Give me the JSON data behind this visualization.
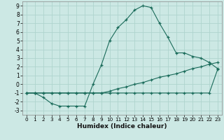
{
  "title": "",
  "xlabel": "Humidex (Indice chaleur)",
  "xlim": [
    -0.5,
    23.5
  ],
  "ylim": [
    -3.5,
    9.5
  ],
  "xticks": [
    0,
    1,
    2,
    3,
    4,
    5,
    6,
    7,
    8,
    9,
    10,
    11,
    12,
    13,
    14,
    15,
    16,
    17,
    18,
    19,
    20,
    21,
    22,
    23
  ],
  "yticks": [
    -3,
    -2,
    -1,
    0,
    1,
    2,
    3,
    4,
    5,
    6,
    7,
    8,
    9
  ],
  "line_color": "#1a6b5a",
  "bg_color": "#cce8e4",
  "grid_color": "#afd4ce",
  "line1_x": [
    0,
    1,
    2,
    3,
    4,
    5,
    6,
    7,
    8,
    9,
    10,
    11,
    12,
    13,
    14,
    15,
    16,
    17,
    18,
    19,
    20,
    21,
    22,
    23
  ],
  "line1_y": [
    -1,
    -1,
    -1.5,
    -2.2,
    -2.5,
    -2.5,
    -2.5,
    -2.5,
    0.0,
    2.2,
    5.0,
    6.5,
    7.4,
    8.5,
    9.0,
    8.8,
    7.0,
    5.4,
    3.6,
    3.6,
    3.2,
    3.0,
    2.5,
    1.8
  ],
  "line2_x": [
    0,
    1,
    2,
    3,
    4,
    5,
    6,
    7,
    8,
    9,
    10,
    11,
    12,
    13,
    14,
    15,
    16,
    17,
    18,
    19,
    20,
    21,
    22,
    23
  ],
  "line2_y": [
    -1,
    -1,
    -1,
    -1,
    -1,
    -1,
    -1,
    -1,
    -1,
    -1,
    -0.8,
    -0.5,
    -0.3,
    0.0,
    0.2,
    0.5,
    0.8,
    1.0,
    1.2,
    1.5,
    1.8,
    2.0,
    2.3,
    2.5
  ],
  "line3_x": [
    0,
    1,
    2,
    3,
    4,
    5,
    6,
    7,
    8,
    9,
    10,
    11,
    12,
    13,
    14,
    15,
    16,
    17,
    18,
    19,
    20,
    21,
    22,
    23
  ],
  "line3_y": [
    -1,
    -1,
    -1,
    -1,
    -1,
    -1,
    -1,
    -1,
    -1,
    -1,
    -1,
    -1,
    -1,
    -1,
    -1,
    -1,
    -1,
    -1,
    -1,
    -1,
    -1,
    -1,
    -1,
    1.7
  ]
}
